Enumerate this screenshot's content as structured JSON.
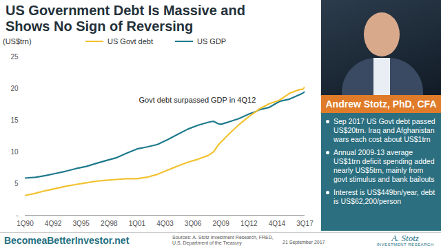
{
  "chart_data": {
    "type": "line",
    "title": "US Government Debt Is Massive and Shows No Sign of Reversing",
    "y_label": "(US$trn)",
    "x": [
      1990,
      1991,
      1992,
      1993,
      1994,
      1995,
      1996,
      1997,
      1998,
      1999,
      2000,
      2001,
      2002,
      2003,
      2004,
      2005,
      2006,
      2007,
      2008,
      2008.5,
      2009,
      2009.25,
      2010,
      2011,
      2012,
      2012.75,
      2013,
      2014,
      2015,
      2016,
      2017,
      2017.25,
      2017.5
    ],
    "series": [
      {
        "name": "US Govt debt",
        "color": "#f2c230",
        "line_style": "solid",
        "values": [
          3.13,
          3.47,
          3.88,
          4.23,
          4.58,
          4.86,
          5.12,
          5.38,
          5.54,
          5.65,
          5.77,
          5.77,
          6.01,
          6.46,
          7.13,
          7.78,
          8.37,
          8.85,
          9.44,
          9.98,
          11.13,
          11.55,
          12.77,
          14.27,
          15.58,
          16.43,
          16.77,
          17.6,
          18.15,
          19.26,
          19.85,
          19.84,
          20.24
        ]
      },
      {
        "name": "US GDP",
        "color": "#1f7a8c",
        "line_style": "solid",
        "values": [
          5.87,
          5.99,
          6.26,
          6.6,
          6.95,
          7.37,
          7.7,
          8.19,
          8.66,
          9.09,
          9.82,
          10.47,
          10.79,
          11.17,
          11.92,
          12.77,
          13.6,
          14.21,
          14.67,
          14.84,
          14.43,
          14.36,
          14.72,
          15.24,
          15.97,
          16.42,
          16.65,
          17.03,
          17.97,
          18.33,
          19.06,
          19.25,
          19.5
        ]
      }
    ],
    "xlim": [
      1990,
      2017.5
    ],
    "xticks": [
      {
        "value": 1990,
        "label": "1Q90"
      },
      {
        "value": 1992.75,
        "label": "4Q92"
      },
      {
        "value": 1995.5,
        "label": "3Q95"
      },
      {
        "value": 1998.25,
        "label": "2Q98"
      },
      {
        "value": 2001,
        "label": "1Q01"
      },
      {
        "value": 2003.75,
        "label": "4Q03"
      },
      {
        "value": 2006.5,
        "label": "3Q06"
      },
      {
        "value": 2009.25,
        "label": "2Q09"
      },
      {
        "value": 2012,
        "label": "1Q12"
      },
      {
        "value": 2014.75,
        "label": "4Q14"
      },
      {
        "value": 2017.5,
        "label": "3Q17"
      }
    ],
    "ylim": [
      0,
      25
    ],
    "yticks": [
      {
        "value": 0,
        "label": "-"
      },
      5,
      10,
      15,
      20,
      25
    ],
    "grid": false,
    "legend": "top-left",
    "annotations": [
      "Govt debt surpassed GDP in 4Q12"
    ]
  },
  "panel": {
    "name": "Andrew Stotz, PhD, CFA",
    "bullets": [
      "Sep 2017 US Govt debt passed US$20trn. Iraq and Afghanistan wars each cost about US$1trn",
      "Annual 2009-13 average US$1trn deficit spending added nearly US$5trn, mainly from govt stimulus and bank bailouts",
      "Interest is US$449bn/year, debt is US$62,200/person"
    ]
  },
  "footer": {
    "site": "BecomeaBetterInvestor.net",
    "sources": "Sources: A. Stotz Investment Research, FRED, U.S. Department of the Treasury",
    "date": "21 September 2017",
    "logo": "A. Stotz",
    "logo_sub": "INVESTMENT RESEARCH"
  }
}
